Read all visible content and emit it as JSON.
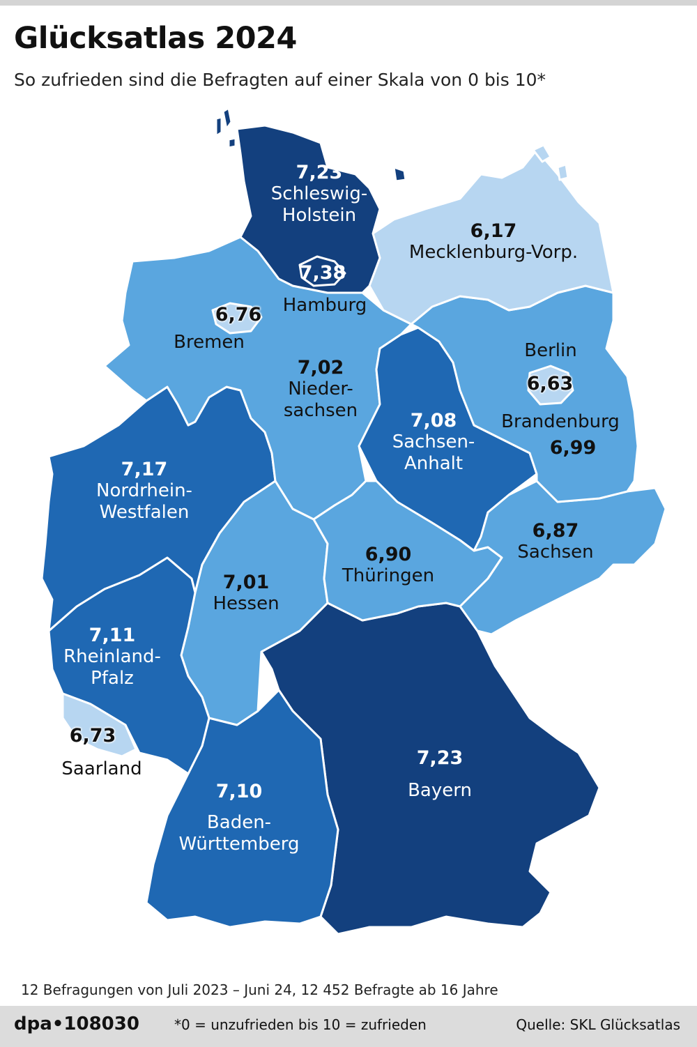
{
  "header": {
    "title": "Glücksatlas 2024",
    "subtitle": "So zufrieden sind die Befragten auf einer Skala von 0 bis 10*"
  },
  "legend_colors": {
    "level_1_lightest": "#b7d6f1",
    "level_2_light": "#5aa6df",
    "level_3_medium": "#1f68b3",
    "level_4_dark": "#13407e"
  },
  "states": {
    "schleswig_holstein": {
      "name": "Schleswig-\nHolstein",
      "value": "7,23"
    },
    "hamburg": {
      "name": "Hamburg",
      "value": "7,38"
    },
    "mecklenburg": {
      "name": "Mecklenburg-Vorp.",
      "value": "6,17"
    },
    "bremen": {
      "name": "Bremen",
      "value": "6,76"
    },
    "niedersachsen": {
      "name": "Nieder-\nsachsen",
      "value": "7,02"
    },
    "berlin": {
      "name": "Berlin",
      "value": "6,63"
    },
    "brandenburg": {
      "name": "Brandenburg",
      "value": "6,99"
    },
    "sachsen_anhalt": {
      "name": "Sachsen-\nAnhalt",
      "value": "7,08"
    },
    "nrw": {
      "name": "Nordrhein-\nWestfalen",
      "value": "7,17"
    },
    "sachsen": {
      "name": "Sachsen",
      "value": "6,87"
    },
    "thueringen": {
      "name": "Thüringen",
      "value": "6,90"
    },
    "hessen": {
      "name": "Hessen",
      "value": "7,01"
    },
    "rheinland_pfalz": {
      "name": "Rheinland-\nPfalz",
      "value": "7,11"
    },
    "saarland": {
      "name": "Saarland",
      "value": "6,73"
    },
    "bayern": {
      "name": "Bayern",
      "value": "7,23"
    },
    "baden_wuerttemberg": {
      "name": "Baden-\nWürttemberg",
      "value": "7,10"
    }
  },
  "footer": {
    "survey_note": "12 Befragungen von Juli 2023 – Juni 24, 12 452 Befragte ab 16 Jahre",
    "logo": "dpa•108030",
    "scale_note": "*0 = unzufrieden bis 10 = zufrieden",
    "source": "Quelle: SKL Glücksatlas"
  }
}
